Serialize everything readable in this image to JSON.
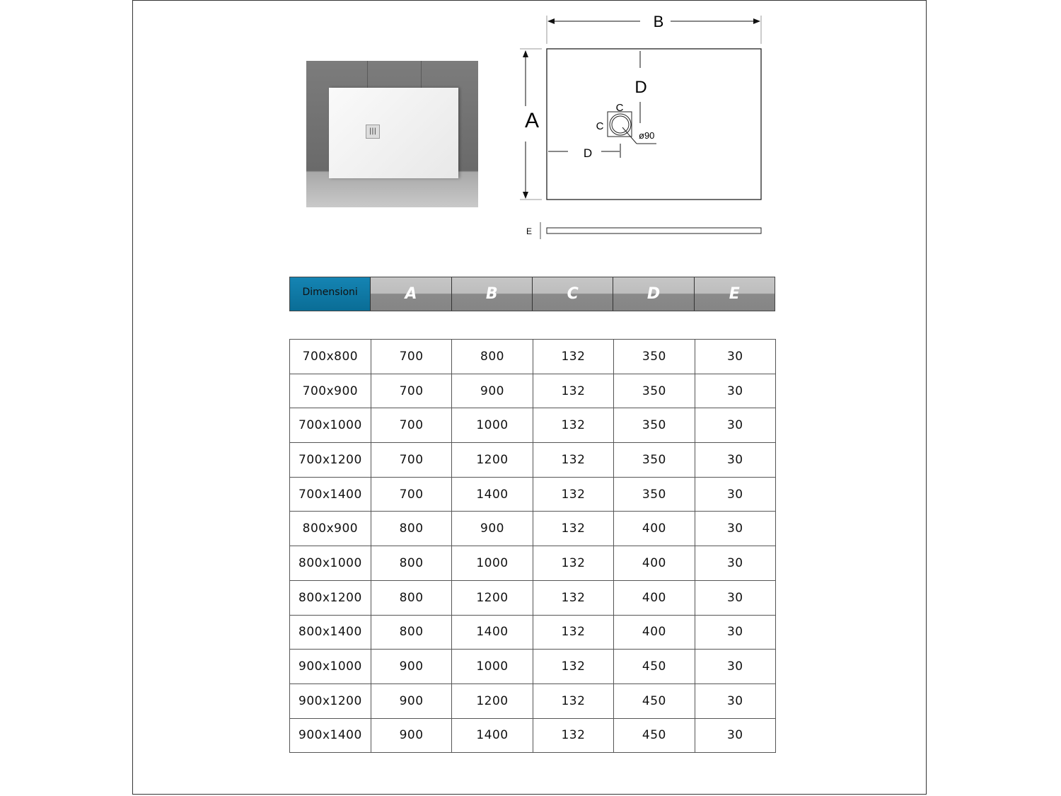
{
  "drawing": {
    "labels": {
      "A": "A",
      "B": "B",
      "C": "C",
      "D": "D",
      "E": "E",
      "diameter": "ø90"
    }
  },
  "table": {
    "headers": [
      "Dimensioni",
      "A",
      "B",
      "C",
      "D",
      "E"
    ],
    "rows": [
      [
        "700x800",
        "700",
        "800",
        "132",
        "350",
        "30"
      ],
      [
        "700x900",
        "700",
        "900",
        "132",
        "350",
        "30"
      ],
      [
        "700x1000",
        "700",
        "1000",
        "132",
        "350",
        "30"
      ],
      [
        "700x1200",
        "700",
        "1200",
        "132",
        "350",
        "30"
      ],
      [
        "700x1400",
        "700",
        "1400",
        "132",
        "350",
        "30"
      ],
      [
        "800x900",
        "800",
        "900",
        "132",
        "400",
        "30"
      ],
      [
        "800x1000",
        "800",
        "1000",
        "132",
        "400",
        "30"
      ],
      [
        "800x1200",
        "800",
        "1200",
        "132",
        "400",
        "30"
      ],
      [
        "800x1400",
        "800",
        "1400",
        "132",
        "400",
        "30"
      ],
      [
        "900x1000",
        "900",
        "1000",
        "132",
        "450",
        "30"
      ],
      [
        "900x1200",
        "900",
        "1200",
        "132",
        "450",
        "30"
      ],
      [
        "900x1400",
        "900",
        "1400",
        "132",
        "450",
        "30"
      ]
    ]
  },
  "colors": {
    "header_accent": "#0a77a3",
    "header_gray": "#8a8a8a"
  }
}
